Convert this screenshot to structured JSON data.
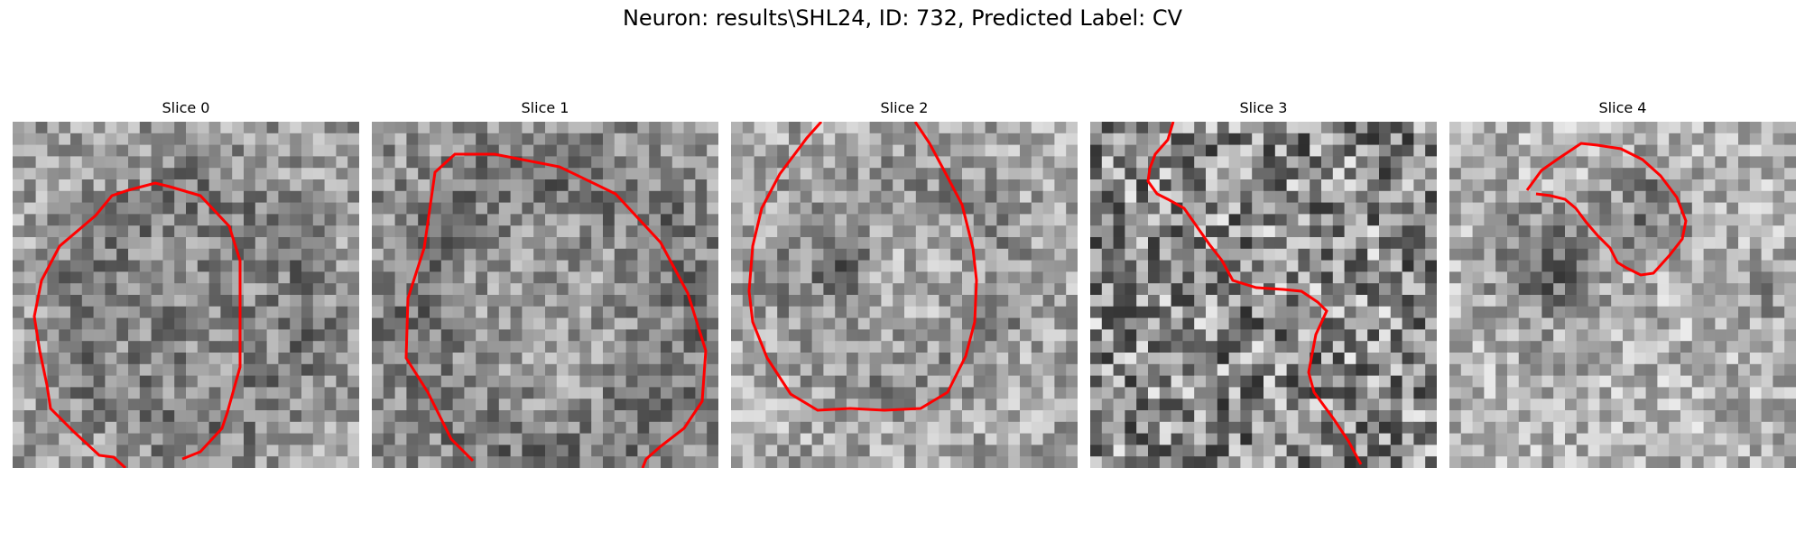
{
  "figure": {
    "title": "Neuron: results\\SHL24, ID: 732, Predicted Label: CV",
    "contour_color": "#ff0000",
    "panels": [
      {
        "label": "Slice 0"
      },
      {
        "label": "Slice 1"
      },
      {
        "label": "Slice 2"
      },
      {
        "label": "Slice 3"
      },
      {
        "label": "Slice 4"
      }
    ]
  }
}
